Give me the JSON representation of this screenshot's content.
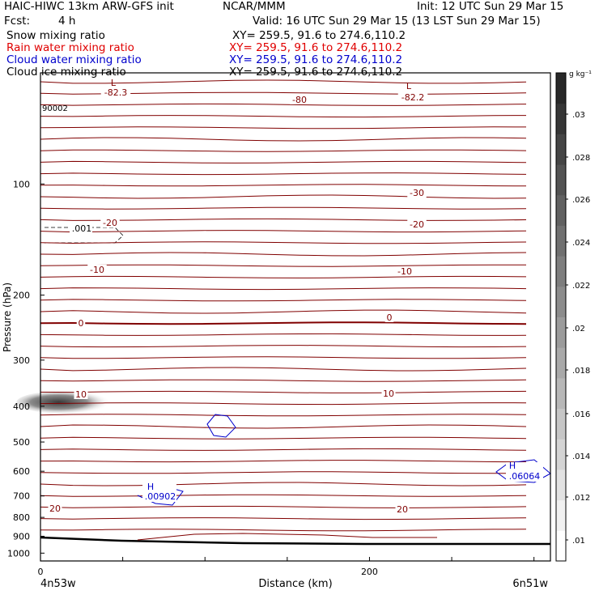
{
  "header": {
    "title_left": "HAIC-HIWC 13km ARW-GFS init",
    "org": "NCAR/MMM",
    "init": "Init: 12 UTC Sun 29 Mar 15",
    "fcst_label": "Fcst:",
    "fcst_value": "4 h",
    "valid": "Valid: 16 UTC Sun 29 Mar 15 (13 LST Sun 29 Mar 15)"
  },
  "fields": [
    {
      "name": "Snow mixing ratio",
      "xy": "XY= 259.5, 91.6 to 274.6,110.2",
      "color": "#000000"
    },
    {
      "name": "Rain water mixing ratio",
      "xy": "XY= 259.5, 91.6 to 274.6,110.2",
      "color": "#e00000"
    },
    {
      "name": "Cloud water mixing ratio",
      "xy": "XY= 259.5, 91.6 to 274.6,110.2",
      "color": "#0000cc"
    },
    {
      "name": "Cloud ice mixing ratio",
      "xy": "XY= 259.5, 91.6 to 274.6,110.2",
      "color": "#000000"
    }
  ],
  "chart_data": {
    "type": "contour",
    "xlabel": "Distance (km)",
    "ylabel": "Pressure (hPa)",
    "xlim": [
      0,
      310
    ],
    "ylim_hpa": [
      50,
      1050
    ],
    "y_log_scale": true,
    "x_ticks": [
      0,
      200
    ],
    "y_ticks": [
      100,
      200,
      300,
      400,
      500,
      600,
      700,
      800,
      900,
      1000
    ],
    "endpoint_labels": {
      "left": "4n53w",
      "right": "6n51w"
    },
    "colorbar": {
      "unit": "g kg⁻¹",
      "ticks": [
        0.01,
        0.012,
        0.014,
        0.016,
        0.018,
        0.02,
        0.022,
        0.024,
        0.026,
        0.028,
        0.03
      ],
      "tick_labels": [
        ".01",
        ".012",
        ".014",
        ".016",
        ".018",
        ".02",
        ".022",
        ".024",
        ".026",
        ".028",
        ".03"
      ]
    },
    "temperature_contour_labels": [
      "-82.3",
      "-82.2",
      "-80",
      "-30",
      "-20",
      "-20",
      "-10",
      "-10",
      "0",
      "0",
      "10",
      "10",
      "20",
      "20"
    ],
    "extrema": [
      {
        "type": "L",
        "value": "-82.3",
        "color": "#800000"
      },
      {
        "type": "L",
        "value": "-82.2",
        "color": "#800000"
      },
      {
        "type": "H",
        "value": ".00902",
        "color": "#0000cc"
      },
      {
        "type": "H",
        "value": ".06064",
        "color": "#0000cc"
      }
    ],
    "cloud_ice_contour_label": ".001",
    "other_labels": [
      "90002"
    ]
  }
}
